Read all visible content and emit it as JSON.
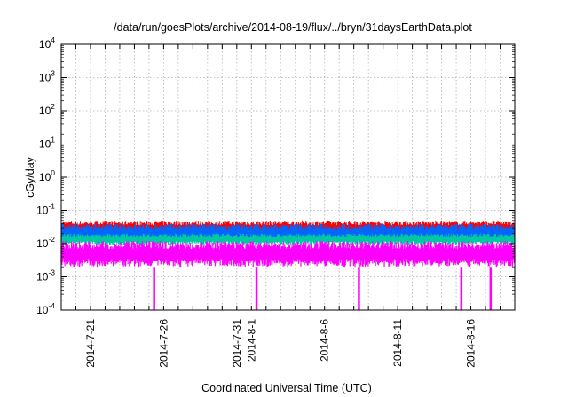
{
  "chart_data": {
    "type": "line",
    "title": "/data/run/goesPlots/archive/2014-08-19/flux/../bryn/31daysEarthData.plot",
    "xlabel": "Coordinated Universal Time (UTC)",
    "ylabel": "cGy/day",
    "y_scale": "log",
    "ylim": [
      0.0001,
      10000
    ],
    "y_ticks": [
      {
        "base": "10",
        "exp": "-4"
      },
      {
        "base": "10",
        "exp": "-3"
      },
      {
        "base": "10",
        "exp": "-2"
      },
      {
        "base": "10",
        "exp": "-1"
      },
      {
        "base": "10",
        "exp": "0"
      },
      {
        "base": "10",
        "exp": "1"
      },
      {
        "base": "10",
        "exp": "2"
      },
      {
        "base": "10",
        "exp": "3"
      },
      {
        "base": "10",
        "exp": "4"
      }
    ],
    "xlim": [
      "2014-07-19",
      "2014-08-19"
    ],
    "x_ticks": [
      "2014-7-21",
      "2014-7-26",
      "2014-7-31",
      "2014-8-1",
      "2014-8-6",
      "2014-8-11",
      "2014-8-16"
    ],
    "grid": true,
    "legend": "none",
    "series_colors": [
      "#ff0000",
      "#0066ff",
      "#00c8a0",
      "#ff00ff"
    ],
    "series": [
      {
        "color": "#ff0000",
        "typical": 0.03,
        "range": [
          0.02,
          0.05
        ]
      },
      {
        "color": "#0066ff",
        "typical": 0.022,
        "range": [
          0.012,
          0.04
        ]
      },
      {
        "color": "#00c8a0",
        "typical": 0.014,
        "range": [
          0.009,
          0.02
        ]
      },
      {
        "color": "#ff00ff",
        "typical": 0.005,
        "range": [
          0.002,
          0.012
        ],
        "dropouts_to": 0.0001,
        "dropout_dates": [
          "2014-7-25",
          "2014-8-1",
          "2014-8-8",
          "2014-8-15",
          "2014-8-17"
        ]
      }
    ]
  }
}
